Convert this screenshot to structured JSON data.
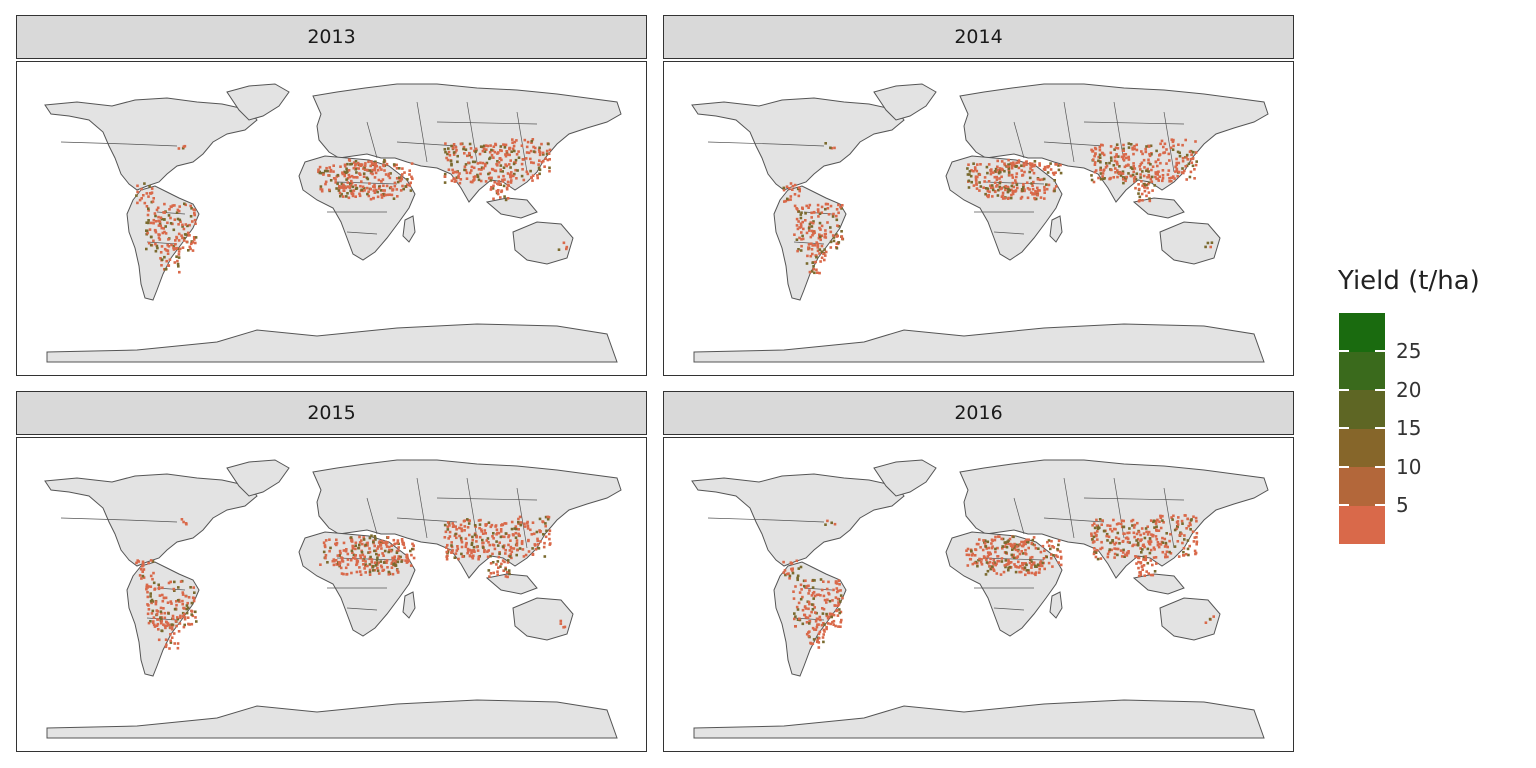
{
  "panels": [
    {
      "year": "2013"
    },
    {
      "year": "2014"
    },
    {
      "year": "2015"
    },
    {
      "year": "2016"
    }
  ],
  "legend": {
    "title": "Yield (t/ha)",
    "ticks": [
      "25",
      "20",
      "15",
      "10",
      "5"
    ],
    "colors": [
      "#1a6b0f",
      "#3a6a1c",
      "#5e6624",
      "#86662a",
      "#b3673a",
      "#d9694a"
    ]
  },
  "colors": {
    "land": "#e3e3e3",
    "border": "#555555",
    "crop_low": "#d9694a",
    "crop_high": "#7a6a2e"
  }
}
